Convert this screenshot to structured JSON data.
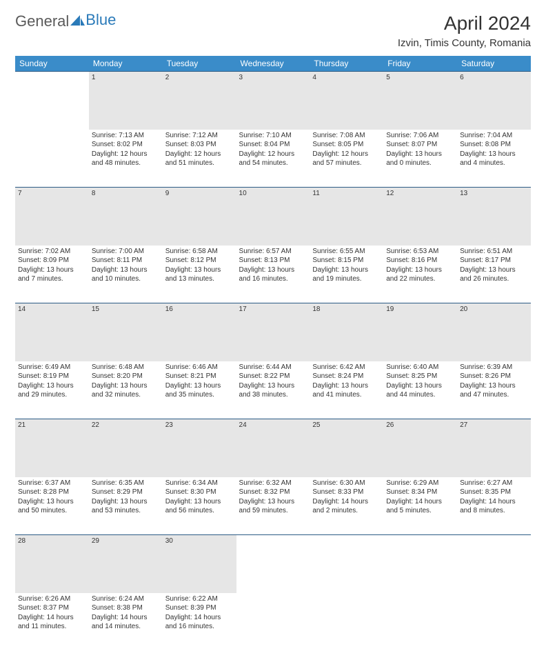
{
  "brand": {
    "part1": "General",
    "part2": "Blue"
  },
  "title": "April 2024",
  "location": "Izvin, Timis County, Romania",
  "colors": {
    "header_bg": "#3a8cc9",
    "header_text": "#ffffff",
    "daynum_bg": "#e6e6e6",
    "rule": "#2a5a84",
    "brand_blue": "#2a7ab9",
    "text": "#333333"
  },
  "weekdays": [
    "Sunday",
    "Monday",
    "Tuesday",
    "Wednesday",
    "Thursday",
    "Friday",
    "Saturday"
  ],
  "weeks": [
    {
      "nums": [
        "",
        "1",
        "2",
        "3",
        "4",
        "5",
        "6"
      ],
      "days": [
        null,
        {
          "sunrise": "Sunrise: 7:13 AM",
          "sunset": "Sunset: 8:02 PM",
          "d1": "Daylight: 12 hours",
          "d2": "and 48 minutes."
        },
        {
          "sunrise": "Sunrise: 7:12 AM",
          "sunset": "Sunset: 8:03 PM",
          "d1": "Daylight: 12 hours",
          "d2": "and 51 minutes."
        },
        {
          "sunrise": "Sunrise: 7:10 AM",
          "sunset": "Sunset: 8:04 PM",
          "d1": "Daylight: 12 hours",
          "d2": "and 54 minutes."
        },
        {
          "sunrise": "Sunrise: 7:08 AM",
          "sunset": "Sunset: 8:05 PM",
          "d1": "Daylight: 12 hours",
          "d2": "and 57 minutes."
        },
        {
          "sunrise": "Sunrise: 7:06 AM",
          "sunset": "Sunset: 8:07 PM",
          "d1": "Daylight: 13 hours",
          "d2": "and 0 minutes."
        },
        {
          "sunrise": "Sunrise: 7:04 AM",
          "sunset": "Sunset: 8:08 PM",
          "d1": "Daylight: 13 hours",
          "d2": "and 4 minutes."
        }
      ]
    },
    {
      "nums": [
        "7",
        "8",
        "9",
        "10",
        "11",
        "12",
        "13"
      ],
      "days": [
        {
          "sunrise": "Sunrise: 7:02 AM",
          "sunset": "Sunset: 8:09 PM",
          "d1": "Daylight: 13 hours",
          "d2": "and 7 minutes."
        },
        {
          "sunrise": "Sunrise: 7:00 AM",
          "sunset": "Sunset: 8:11 PM",
          "d1": "Daylight: 13 hours",
          "d2": "and 10 minutes."
        },
        {
          "sunrise": "Sunrise: 6:58 AM",
          "sunset": "Sunset: 8:12 PM",
          "d1": "Daylight: 13 hours",
          "d2": "and 13 minutes."
        },
        {
          "sunrise": "Sunrise: 6:57 AM",
          "sunset": "Sunset: 8:13 PM",
          "d1": "Daylight: 13 hours",
          "d2": "and 16 minutes."
        },
        {
          "sunrise": "Sunrise: 6:55 AM",
          "sunset": "Sunset: 8:15 PM",
          "d1": "Daylight: 13 hours",
          "d2": "and 19 minutes."
        },
        {
          "sunrise": "Sunrise: 6:53 AM",
          "sunset": "Sunset: 8:16 PM",
          "d1": "Daylight: 13 hours",
          "d2": "and 22 minutes."
        },
        {
          "sunrise": "Sunrise: 6:51 AM",
          "sunset": "Sunset: 8:17 PM",
          "d1": "Daylight: 13 hours",
          "d2": "and 26 minutes."
        }
      ]
    },
    {
      "nums": [
        "14",
        "15",
        "16",
        "17",
        "18",
        "19",
        "20"
      ],
      "days": [
        {
          "sunrise": "Sunrise: 6:49 AM",
          "sunset": "Sunset: 8:19 PM",
          "d1": "Daylight: 13 hours",
          "d2": "and 29 minutes."
        },
        {
          "sunrise": "Sunrise: 6:48 AM",
          "sunset": "Sunset: 8:20 PM",
          "d1": "Daylight: 13 hours",
          "d2": "and 32 minutes."
        },
        {
          "sunrise": "Sunrise: 6:46 AM",
          "sunset": "Sunset: 8:21 PM",
          "d1": "Daylight: 13 hours",
          "d2": "and 35 minutes."
        },
        {
          "sunrise": "Sunrise: 6:44 AM",
          "sunset": "Sunset: 8:22 PM",
          "d1": "Daylight: 13 hours",
          "d2": "and 38 minutes."
        },
        {
          "sunrise": "Sunrise: 6:42 AM",
          "sunset": "Sunset: 8:24 PM",
          "d1": "Daylight: 13 hours",
          "d2": "and 41 minutes."
        },
        {
          "sunrise": "Sunrise: 6:40 AM",
          "sunset": "Sunset: 8:25 PM",
          "d1": "Daylight: 13 hours",
          "d2": "and 44 minutes."
        },
        {
          "sunrise": "Sunrise: 6:39 AM",
          "sunset": "Sunset: 8:26 PM",
          "d1": "Daylight: 13 hours",
          "d2": "and 47 minutes."
        }
      ]
    },
    {
      "nums": [
        "21",
        "22",
        "23",
        "24",
        "25",
        "26",
        "27"
      ],
      "days": [
        {
          "sunrise": "Sunrise: 6:37 AM",
          "sunset": "Sunset: 8:28 PM",
          "d1": "Daylight: 13 hours",
          "d2": "and 50 minutes."
        },
        {
          "sunrise": "Sunrise: 6:35 AM",
          "sunset": "Sunset: 8:29 PM",
          "d1": "Daylight: 13 hours",
          "d2": "and 53 minutes."
        },
        {
          "sunrise": "Sunrise: 6:34 AM",
          "sunset": "Sunset: 8:30 PM",
          "d1": "Daylight: 13 hours",
          "d2": "and 56 minutes."
        },
        {
          "sunrise": "Sunrise: 6:32 AM",
          "sunset": "Sunset: 8:32 PM",
          "d1": "Daylight: 13 hours",
          "d2": "and 59 minutes."
        },
        {
          "sunrise": "Sunrise: 6:30 AM",
          "sunset": "Sunset: 8:33 PM",
          "d1": "Daylight: 14 hours",
          "d2": "and 2 minutes."
        },
        {
          "sunrise": "Sunrise: 6:29 AM",
          "sunset": "Sunset: 8:34 PM",
          "d1": "Daylight: 14 hours",
          "d2": "and 5 minutes."
        },
        {
          "sunrise": "Sunrise: 6:27 AM",
          "sunset": "Sunset: 8:35 PM",
          "d1": "Daylight: 14 hours",
          "d2": "and 8 minutes."
        }
      ]
    },
    {
      "nums": [
        "28",
        "29",
        "30",
        "",
        "",
        "",
        ""
      ],
      "days": [
        {
          "sunrise": "Sunrise: 6:26 AM",
          "sunset": "Sunset: 8:37 PM",
          "d1": "Daylight: 14 hours",
          "d2": "and 11 minutes."
        },
        {
          "sunrise": "Sunrise: 6:24 AM",
          "sunset": "Sunset: 8:38 PM",
          "d1": "Daylight: 14 hours",
          "d2": "and 14 minutes."
        },
        {
          "sunrise": "Sunrise: 6:22 AM",
          "sunset": "Sunset: 8:39 PM",
          "d1": "Daylight: 14 hours",
          "d2": "and 16 minutes."
        },
        null,
        null,
        null,
        null
      ]
    }
  ]
}
